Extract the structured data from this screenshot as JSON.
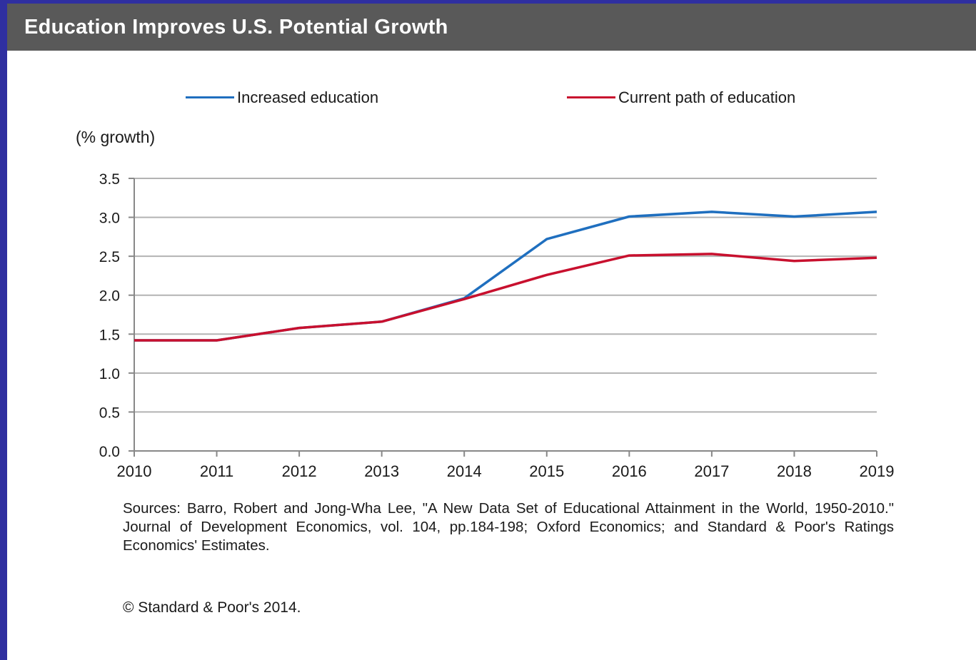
{
  "header": {
    "title": "Education Improves U.S. Potential Growth"
  },
  "chart_data": {
    "type": "line",
    "title": "Education Improves U.S. Potential Growth",
    "ylabel": "(% growth)",
    "xlabel": "",
    "x": [
      "2010",
      "2011",
      "2012",
      "2013",
      "2014",
      "2015",
      "2016",
      "2017",
      "2018",
      "2019"
    ],
    "yticks": [
      "0.0",
      "0.5",
      "1.0",
      "1.5",
      "2.0",
      "2.5",
      "3.0",
      "3.5"
    ],
    "ylim": [
      0,
      3.5
    ],
    "grid": true,
    "legend_position": "top",
    "series": [
      {
        "name": "Increased education",
        "color": "#1f6fbf",
        "values": [
          1.42,
          1.42,
          1.58,
          1.66,
          1.96,
          2.72,
          3.01,
          3.07,
          3.01,
          3.07
        ]
      },
      {
        "name": "Current path of education",
        "color": "#c8102e",
        "values": [
          1.42,
          1.42,
          1.58,
          1.66,
          1.95,
          2.26,
          2.51,
          2.53,
          2.44,
          2.48
        ]
      }
    ]
  },
  "footer": {
    "sources": "Sources: Barro, Robert and Jong-Wha Lee, \"A New Data Set of Educational Attainment in the World, 1950-2010.\" Journal of Development Economics, vol. 104, pp.184-198; Oxford Economics; and Standard & Poor's Ratings Economics' Estimates.",
    "copyright": "© Standard & Poor's 2014."
  }
}
